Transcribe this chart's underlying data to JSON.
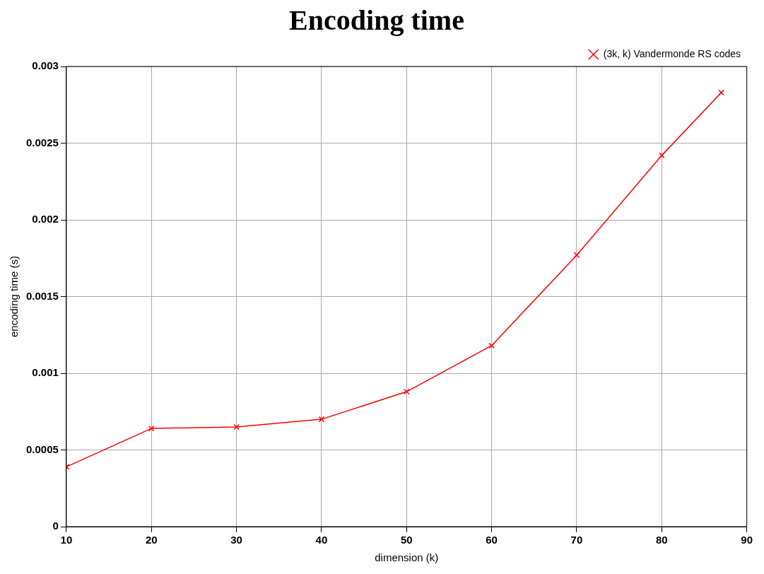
{
  "chart_data": {
    "type": "line",
    "title": "Encoding time",
    "xlabel": "dimension (k)",
    "ylabel": "encoding time (s)",
    "x": [
      10,
      20,
      30,
      40,
      50,
      60,
      70,
      80,
      87
    ],
    "series": [
      {
        "name": "(3k, k) Vandermonde RS codes",
        "color": "#ff0000",
        "values": [
          0.00039,
          0.00064,
          0.00065,
          0.0007,
          0.00088,
          0.00118,
          0.00177,
          0.00242,
          0.00283
        ]
      }
    ],
    "xlim": [
      10,
      90
    ],
    "xticks": [
      10,
      20,
      30,
      40,
      50,
      60,
      70,
      80,
      90
    ],
    "ylim": [
      0,
      0.003
    ],
    "yticks": [
      0,
      0.0005,
      0.001,
      0.0015,
      0.002,
      0.0025,
      0.003
    ],
    "grid": true,
    "legend": "top right",
    "marker": "cross",
    "line_style": "solid"
  }
}
